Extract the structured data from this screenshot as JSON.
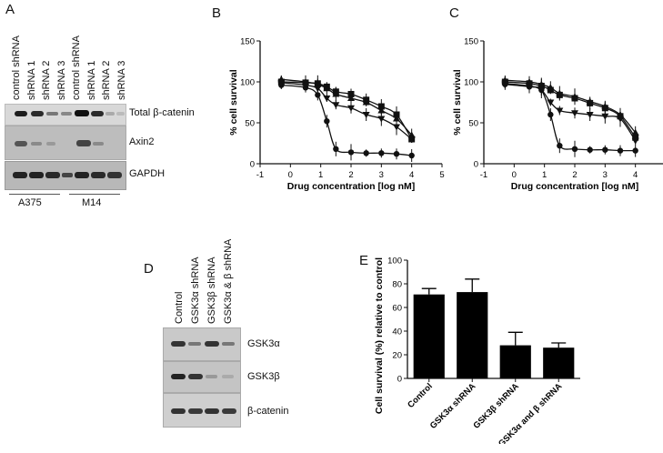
{
  "panels": {
    "A": "A",
    "B": "B",
    "C": "C",
    "D": "D",
    "E": "E"
  },
  "panel_a": {
    "lanes": [
      "control shRNA",
      "shRNA 1",
      "shRNA 2",
      "shRNA 3",
      "control shRNA",
      "shRNA 1",
      "shRNA 2",
      "shRNA 3"
    ],
    "blots": [
      "Total β-catenin",
      "Axin2",
      "GAPDH"
    ],
    "cell_lines": [
      "A375",
      "M14"
    ]
  },
  "panel_d": {
    "lanes": [
      "Control",
      "GSK3α shRNA",
      "GSK3β shRNA",
      "GSK3α & β shRNA"
    ],
    "blots": [
      "GSK3α",
      "GSK3β",
      "β-catenin"
    ]
  },
  "chart_data": [
    {
      "type": "scatter",
      "panel": "B",
      "xlabel": "Drug concentration [log nM]",
      "ylabel": "% cell survival",
      "xlim": [
        -1,
        5
      ],
      "ylim": [
        0,
        150
      ],
      "xticks": [
        -1,
        0,
        1,
        2,
        3,
        4,
        5
      ],
      "yticks": [
        0,
        50,
        100,
        150
      ],
      "series": [
        {
          "marker": "circle",
          "x": [
            -0.3,
            0.5,
            0.9,
            1.2,
            1.5,
            2.0,
            2.5,
            3.0,
            3.5,
            4.0
          ],
          "y": [
            96,
            93,
            84,
            52,
            18,
            14,
            13,
            13,
            12,
            10
          ]
        },
        {
          "marker": "square",
          "x": [
            -0.3,
            0.5,
            0.9,
            1.2,
            1.5,
            2.0,
            2.5,
            3.0,
            3.5,
            4.0
          ],
          "y": [
            100,
            99,
            98,
            94,
            88,
            85,
            78,
            70,
            60,
            30
          ]
        },
        {
          "marker": "triangle-up",
          "x": [
            -0.3,
            0.5,
            0.9,
            1.2,
            1.5,
            2.0,
            2.5,
            3.0,
            3.5,
            4.0
          ],
          "y": [
            103,
            100,
            97,
            92,
            85,
            80,
            75,
            65,
            55,
            35
          ]
        },
        {
          "marker": "triangle-down",
          "x": [
            -0.3,
            0.5,
            0.9,
            1.2,
            1.5,
            2.0,
            2.5,
            3.0,
            3.5,
            4.0
          ],
          "y": [
            99,
            96,
            92,
            80,
            72,
            68,
            60,
            55,
            45,
            30
          ]
        }
      ]
    },
    {
      "type": "scatter",
      "panel": "C",
      "xlabel": "Drug concentration [log nM]",
      "ylabel": "% cell survival",
      "xlim": [
        -1,
        5
      ],
      "ylim": [
        0,
        150
      ],
      "xticks": [
        -1,
        0,
        1,
        2,
        3,
        4,
        5
      ],
      "yticks": [
        0,
        50,
        100,
        150
      ],
      "series": [
        {
          "marker": "circle",
          "x": [
            -0.3,
            0.5,
            0.9,
            1.2,
            1.5,
            2.0,
            2.5,
            3.0,
            3.5,
            4.0
          ],
          "y": [
            97,
            94,
            90,
            60,
            22,
            18,
            17,
            17,
            16,
            16
          ]
        },
        {
          "marker": "square",
          "x": [
            -0.3,
            0.5,
            0.9,
            1.2,
            1.5,
            2.0,
            2.5,
            3.0,
            3.5,
            4.0
          ],
          "y": [
            100,
            98,
            95,
            90,
            84,
            80,
            74,
            68,
            58,
            32
          ]
        },
        {
          "marker": "triangle-up",
          "x": [
            -0.3,
            0.5,
            0.9,
            1.2,
            1.5,
            2.0,
            2.5,
            3.0,
            3.5,
            4.0
          ],
          "y": [
            102,
            100,
            97,
            93,
            86,
            82,
            76,
            70,
            60,
            38
          ]
        },
        {
          "marker": "triangle-down",
          "x": [
            -0.3,
            0.5,
            0.9,
            1.2,
            1.5,
            2.0,
            2.5,
            3.0,
            3.5,
            4.0
          ],
          "y": [
            98,
            95,
            90,
            75,
            65,
            62,
            60,
            58,
            55,
            28
          ]
        }
      ]
    },
    {
      "type": "bar",
      "panel": "E",
      "categories": [
        "Control",
        "GSK3α shRNA",
        "GSK3β shRNA",
        "GSK3α and β shRNA"
      ],
      "values": [
        71,
        73,
        28,
        26
      ],
      "errors": [
        5,
        11,
        11,
        4
      ],
      "ylabel": "Cell survival (%) relative to control",
      "ylim": [
        0,
        100
      ],
      "yticks": [
        0,
        20,
        40,
        60,
        80,
        100
      ]
    }
  ]
}
